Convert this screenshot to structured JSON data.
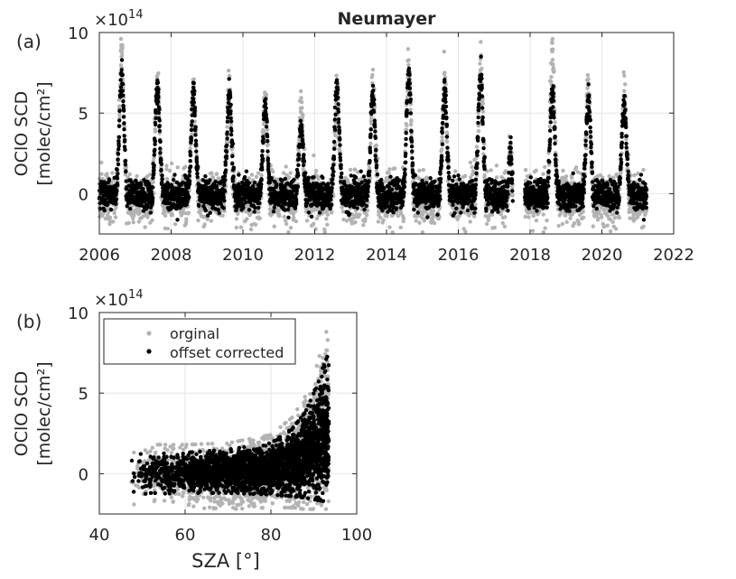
{
  "figure": {
    "title": "Neumayer",
    "scale_label": "×10",
    "scale_exp": "14",
    "colors": {
      "original": "#b3b3b3",
      "corrected": "#000000",
      "axis": "#262626",
      "grid": "#e6e6e6"
    }
  },
  "chart_data": [
    {
      "panel_label": "(a)",
      "type": "scatter",
      "title": "Neumayer",
      "xlabel": "",
      "ylabel_line1": "OClO SCD",
      "ylabel_line2": "[molec/cm²]",
      "xlim": [
        2006,
        2022
      ],
      "ylim": [
        -2.5,
        10
      ],
      "x_ticks": [
        2006,
        2008,
        2010,
        2012,
        2014,
        2016,
        2018,
        2020,
        2022
      ],
      "y_ticks": [
        0,
        5,
        10
      ],
      "grid": true,
      "x_unit": "year",
      "y_scale": "1e14",
      "seasonal_peaks_corrected": [
        {
          "year": 2006,
          "peak_x": 2006.62,
          "peak_y": 7.5
        },
        {
          "year": 2007,
          "peak_x": 2007.62,
          "peak_y": 6.8
        },
        {
          "year": 2008,
          "peak_x": 2008.62,
          "peak_y": 6.3
        },
        {
          "year": 2009,
          "peak_x": 2009.62,
          "peak_y": 6.2
        },
        {
          "year": 2010,
          "peak_x": 2010.62,
          "peak_y": 5.2
        },
        {
          "year": 2011,
          "peak_x": 2011.62,
          "peak_y": 4.0
        },
        {
          "year": 2012,
          "peak_x": 2012.62,
          "peak_y": 6.6
        },
        {
          "year": 2013,
          "peak_x": 2013.62,
          "peak_y": 6.2
        },
        {
          "year": 2014,
          "peak_x": 2014.62,
          "peak_y": 7.5
        },
        {
          "year": 2015,
          "peak_x": 2015.62,
          "peak_y": 6.5
        },
        {
          "year": 2016,
          "peak_x": 2016.62,
          "peak_y": 7.5
        },
        {
          "year": 2017,
          "peak_x": 2017.45,
          "peak_y": 2.9
        },
        {
          "year": 2018,
          "peak_x": 2018.62,
          "peak_y": 6.4
        },
        {
          "year": 2019,
          "peak_x": 2019.62,
          "peak_y": 5.9
        },
        {
          "year": 2020,
          "peak_x": 2020.62,
          "peak_y": 5.8
        }
      ],
      "seasonal_peaks_original_max": [
        9.3,
        6.9,
        6.5,
        6.5,
        6.0,
        5.5,
        6.2,
        6.9,
        8.1,
        6.9,
        8.0,
        3.2,
        9.0,
        6.6,
        6.3
      ],
      "data_end_x": 2021.25,
      "gaps": [
        [
          2017.52,
          2017.85
        ]
      ]
    },
    {
      "panel_label": "(b)",
      "type": "scatter",
      "xlabel": "SZA [°]",
      "ylabel_line1": "OClO SCD",
      "ylabel_line2": "[molec/cm²]",
      "xlim": [
        40,
        100
      ],
      "ylim": [
        -2.5,
        10
      ],
      "x_ticks": [
        40,
        60,
        80,
        100
      ],
      "y_ticks": [
        0,
        5,
        10
      ],
      "grid": true,
      "y_scale": "1e14",
      "sza_range": [
        47,
        93.5
      ],
      "envelope_corrected": {
        "sza": [
          47,
          60,
          70,
          80,
          85,
          88,
          90,
          92,
          93.5
        ],
        "max": [
          1.2,
          1.3,
          1.5,
          1.9,
          2.8,
          3.8,
          5.0,
          6.5,
          7.5
        ],
        "min": [
          -1.3,
          -1.2,
          -1.2,
          -1.3,
          -1.4,
          -1.5,
          -1.6,
          -1.7,
          -1.7
        ]
      },
      "envelope_original": {
        "sza": [
          47,
          60,
          70,
          80,
          85,
          88,
          90,
          92,
          93.5
        ],
        "max": [
          1.8,
          1.8,
          1.9,
          2.4,
          3.5,
          4.8,
          6.0,
          8.0,
          9.3
        ],
        "min": [
          -1.9,
          -2.1,
          -2.2,
          -2.1,
          -2.1,
          -2.2,
          -2.2,
          -2.2,
          -2.2
        ]
      },
      "legend": {
        "position": "top-left",
        "entries": [
          {
            "label": "orginal",
            "color": "#b3b3b3"
          },
          {
            "label": "offset corrected",
            "color": "#000000"
          }
        ]
      }
    }
  ]
}
